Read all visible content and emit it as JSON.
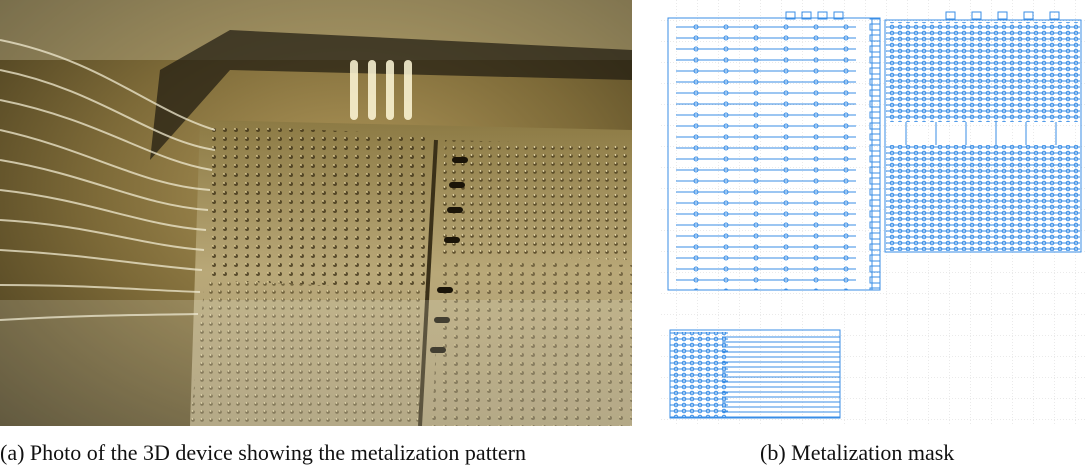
{
  "figure": {
    "subfigures": [
      {
        "caption": "(a) Photo of the 3D device showing the metalization pattern"
      },
      {
        "caption": "(b) Metalization mask"
      }
    ]
  }
}
